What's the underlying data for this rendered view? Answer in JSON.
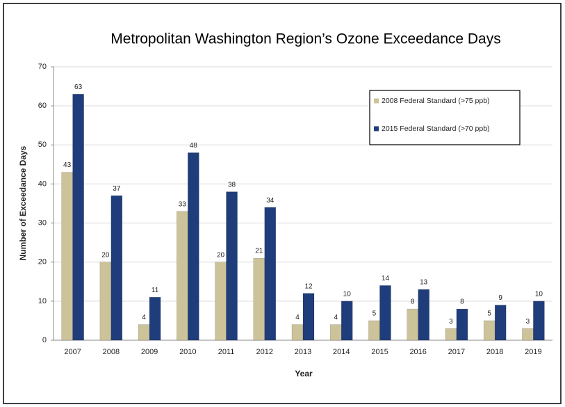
{
  "chart_data": {
    "type": "bar",
    "title": "Metropolitan Washington Region’s Ozone Exceedance Days",
    "x_label": "Year",
    "y_label": "Number of Exceedance Days",
    "categories": [
      "2007",
      "2008",
      "2009",
      "2010",
      "2011",
      "2012",
      "2013",
      "2014",
      "2015",
      "2016",
      "2017",
      "2018",
      "2019"
    ],
    "series": [
      {
        "name": "2008 Federal Standard (>75 ppb)",
        "color": "#cdc39a",
        "values": [
          43,
          20,
          4,
          33,
          20,
          21,
          4,
          4,
          5,
          8,
          3,
          5,
          3
        ]
      },
      {
        "name": "2015 Federal Standard (>70 ppb)",
        "color": "#1f3d7a",
        "values": [
          63,
          37,
          11,
          48,
          38,
          34,
          12,
          10,
          14,
          13,
          8,
          9,
          10
        ]
      }
    ],
    "ylim": [
      0,
      70
    ],
    "yticks": [
      0,
      10,
      20,
      30,
      40,
      50,
      60,
      70
    ],
    "grid": true,
    "legend": "upper right"
  }
}
